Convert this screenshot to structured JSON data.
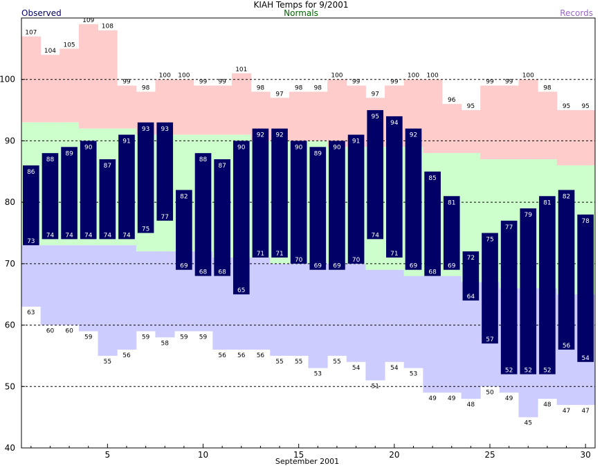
{
  "title": "KIAH Temps for 9/2001",
  "legend": {
    "observed": "Observed",
    "normals": "Normals",
    "records": "Records"
  },
  "colors": {
    "observed": "#000066",
    "normals_fill": "#ccffcc",
    "record_high_fill": "#ffcccc",
    "record_low_fill": "#ccccff",
    "normals_text": "#006400",
    "records_text": "#9966cc"
  },
  "chart_data": {
    "type": "bar",
    "xlabel": "September 2001",
    "ylim": [
      40,
      110
    ],
    "yticks": [
      40,
      50,
      60,
      70,
      80,
      90,
      100
    ],
    "xticks": [
      5,
      10,
      15,
      20,
      25,
      30
    ],
    "grid": "horizontal dashed",
    "days": [
      1,
      2,
      3,
      4,
      5,
      6,
      7,
      8,
      9,
      10,
      11,
      12,
      13,
      14,
      15,
      16,
      17,
      18,
      19,
      20,
      21,
      22,
      23,
      24,
      25,
      26,
      27,
      28,
      29,
      30
    ],
    "series": [
      {
        "name": "Observed High",
        "values": [
          86,
          88,
          89,
          90,
          87,
          91,
          93,
          93,
          82,
          88,
          87,
          90,
          92,
          92,
          90,
          89,
          90,
          91,
          95,
          94,
          92,
          85,
          81,
          72,
          75,
          77,
          79,
          81,
          82,
          78
        ]
      },
      {
        "name": "Observed Low",
        "values": [
          73,
          74,
          74,
          74,
          74,
          74,
          75,
          77,
          69,
          68,
          68,
          65,
          71,
          71,
          70,
          69,
          69,
          70,
          74,
          71,
          69,
          68,
          69,
          64,
          57,
          52,
          52,
          52,
          56,
          54
        ]
      },
      {
        "name": "Record High",
        "values": [
          107,
          104,
          105,
          109,
          108,
          99,
          98,
          100,
          100,
          99,
          99,
          101,
          98,
          97,
          98,
          98,
          100,
          99,
          97,
          99,
          100,
          100,
          96,
          95,
          99,
          99,
          100,
          98,
          95,
          95
        ]
      },
      {
        "name": "Record Low",
        "values": [
          63,
          60,
          60,
          59,
          55,
          56,
          59,
          58,
          59,
          59,
          56,
          56,
          56,
          55,
          55,
          53,
          55,
          54,
          51,
          54,
          53,
          49,
          49,
          48,
          50,
          49,
          45,
          48,
          47,
          47
        ]
      },
      {
        "name": "Normal High",
        "values": [
          93,
          93,
          93,
          92,
          92,
          92,
          91,
          91,
          91,
          91,
          91,
          91,
          90,
          90,
          90,
          90,
          89,
          89,
          89,
          89,
          89,
          88,
          88,
          88,
          87,
          87,
          87,
          87,
          86,
          86
        ]
      },
      {
        "name": "Normal Low",
        "values": [
          73,
          73,
          73,
          73,
          73,
          73,
          72,
          72,
          72,
          72,
          71,
          71,
          71,
          70,
          70,
          70,
          70,
          70,
          69,
          69,
          68,
          68,
          68,
          67,
          67,
          66,
          66,
          66,
          65,
          65
        ]
      }
    ]
  }
}
